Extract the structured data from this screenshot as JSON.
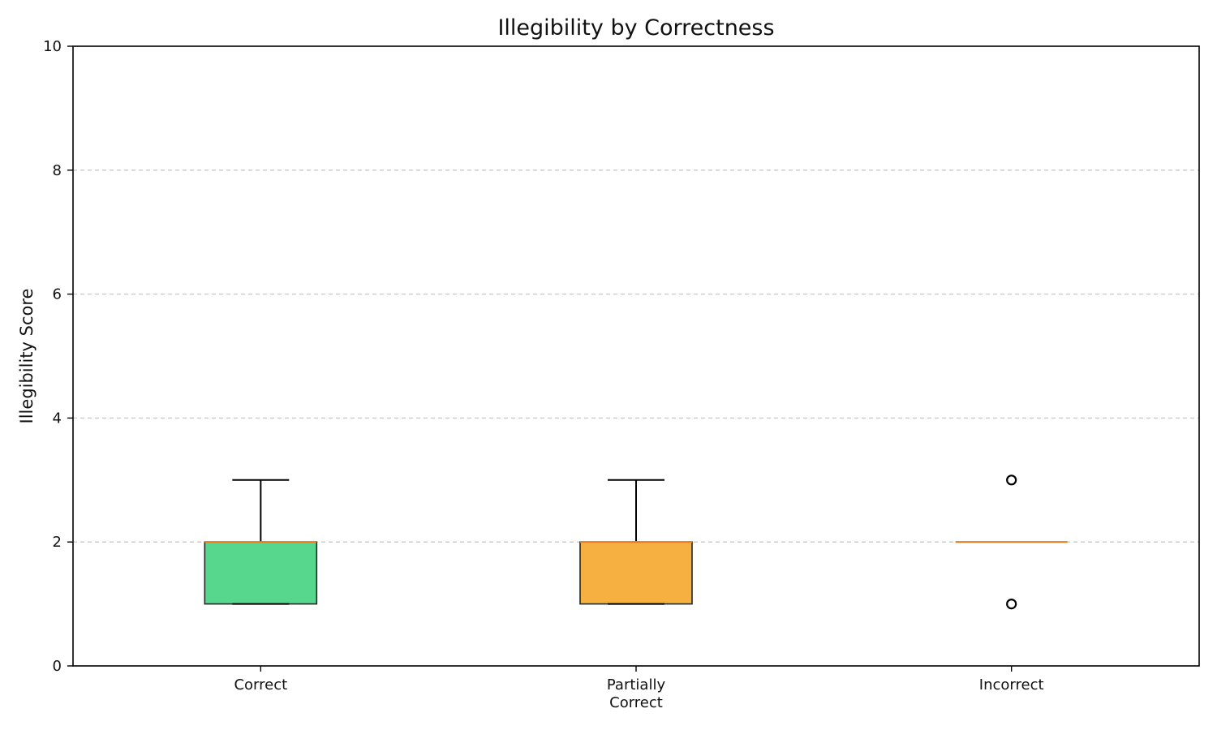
{
  "chart_data": {
    "type": "box",
    "title": "Illegibility by Correctness",
    "xlabel": "",
    "ylabel": "Illegibility Score",
    "ylim": [
      0,
      10
    ],
    "yticks": [
      0,
      2,
      4,
      6,
      8,
      10
    ],
    "grid": {
      "axis": "y",
      "style": "dashed"
    },
    "categories": [
      {
        "lines": [
          "Correct"
        ]
      },
      {
        "lines": [
          "Partially",
          "Correct"
        ]
      },
      {
        "lines": [
          "Incorrect"
        ]
      }
    ],
    "boxes": [
      {
        "whislo": 1,
        "q1": 1,
        "med": 2,
        "q3": 2,
        "whishi": 3,
        "fliers": [],
        "color": "#57d68d"
      },
      {
        "whislo": 1,
        "q1": 1,
        "med": 2,
        "q3": 2,
        "whishi": 3,
        "fliers": [],
        "color": "#f5b041"
      },
      {
        "whislo": 2,
        "q1": 2,
        "med": 2,
        "q3": 2,
        "whishi": 2,
        "fliers": [
          1,
          3
        ],
        "color": "#f5b041"
      }
    ],
    "median_color": "#e67e22"
  }
}
